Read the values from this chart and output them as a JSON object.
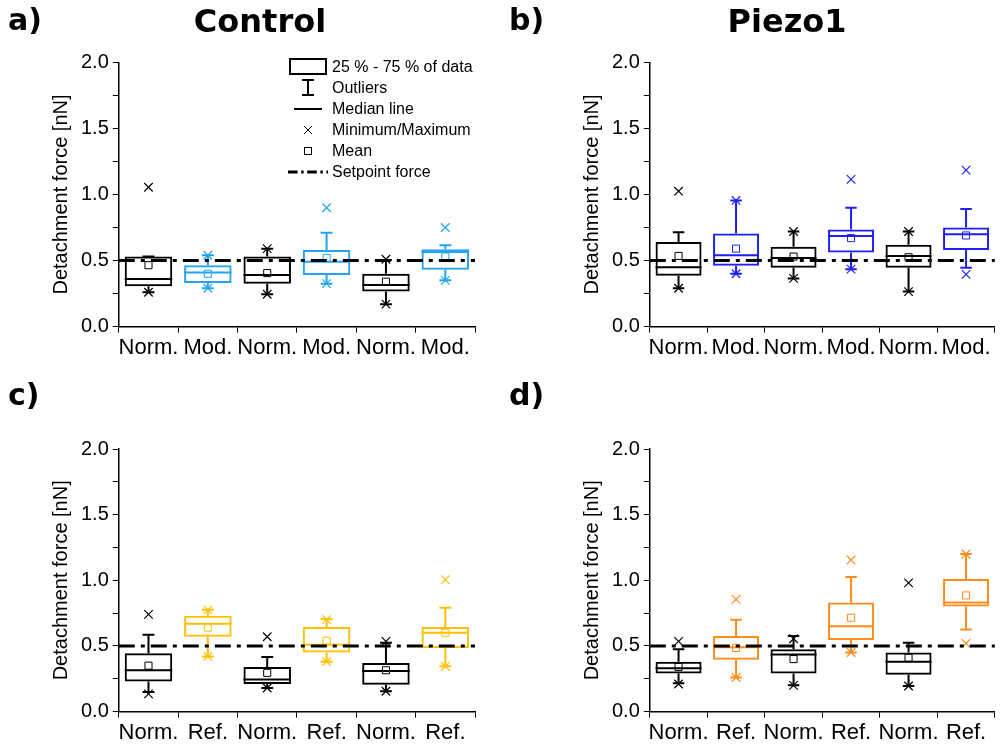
{
  "chart_data": [
    {
      "type": "box",
      "title": "Control",
      "ylabel": "Detachment force [nN]",
      "categories": [
        "Norm.",
        "Mod.",
        "Norm.",
        "Mod.",
        "Norm.",
        "Mod."
      ],
      "colors": [
        "#000000",
        "#22a4f2",
        "#000000",
        "#22a4f2",
        "#000000",
        "#22a4f2"
      ],
      "boxes": [
        {
          "low": 0.26,
          "q1": 0.305,
          "median": 0.36,
          "q3": 0.53,
          "high": 0.53,
          "mean": 0.465,
          "outliers": [
            1.055,
            0.26
          ]
        },
        {
          "low": 0.29,
          "q1": 0.33,
          "median": 0.41,
          "q3": 0.465,
          "high": 0.54,
          "mean": 0.4,
          "outliers": [
            0.54,
            0.29
          ]
        },
        {
          "low": 0.245,
          "q1": 0.325,
          "median": 0.39,
          "q3": 0.53,
          "high": 0.59,
          "mean": 0.405,
          "outliers": [
            0.59,
            0.245
          ]
        },
        {
          "low": 0.325,
          "q1": 0.39,
          "median": 0.49,
          "q3": 0.58,
          "high": 0.71,
          "mean": 0.52,
          "outliers": [
            0.9,
            0.325
          ]
        },
        {
          "low": 0.17,
          "q1": 0.265,
          "median": 0.315,
          "q3": 0.4,
          "high": 0.505,
          "mean": 0.34,
          "outliers": [
            0.51,
            0.17
          ]
        },
        {
          "low": 0.35,
          "q1": 0.43,
          "median": 0.565,
          "q3": 0.585,
          "high": 0.615,
          "mean": 0.53,
          "outliers": [
            0.75,
            0.35
          ]
        }
      ],
      "ylim": [
        0,
        2.0
      ],
      "yticks": [
        {
          "value": 0,
          "label": "0.0"
        },
        {
          "value": 0.25,
          "label": null
        },
        {
          "value": 0.5,
          "label": "0.5"
        },
        {
          "value": 0.75,
          "label": null
        },
        {
          "value": 1.0,
          "label": "1.0"
        },
        {
          "value": 1.25,
          "label": null
        },
        {
          "value": 1.5,
          "label": "1.5"
        },
        {
          "value": 1.75,
          "label": null
        },
        {
          "value": 2.0,
          "label": "2.0"
        }
      ],
      "ref_lines": [
        {
          "axis": "y",
          "value": 0.5,
          "label": "Setpoint force",
          "color": "#000000",
          "line_style": "dashed"
        }
      ],
      "legend": "top right",
      "annotations": [
        "a)",
        "25 % - 75 % of data",
        "Outliers",
        "Median line",
        "Minimum/Maximum",
        "Mean"
      ]
    },
    {
      "type": "box",
      "title": "Piezo1",
      "ylabel": "Detachment force [nN]",
      "categories": [
        "Norm.",
        "Mod.",
        "Norm.",
        "Mod.",
        "Norm.",
        "Mod."
      ],
      "colors": [
        "#000000",
        "#1f1ff5",
        "#000000",
        "#1f1ff5",
        "#000000",
        "#1f1ff5"
      ],
      "boxes": [
        {
          "low": 0.29,
          "q1": 0.385,
          "median": 0.45,
          "q3": 0.64,
          "high": 0.715,
          "mean": 0.535,
          "outliers": [
            1.025,
            0.29
          ]
        },
        {
          "low": 0.4,
          "q1": 0.46,
          "median": 0.54,
          "q3": 0.705,
          "high": 0.955,
          "mean": 0.59,
          "outliers": [
            0.955,
            0.4
          ]
        },
        {
          "low": 0.365,
          "q1": 0.445,
          "median": 0.52,
          "q3": 0.605,
          "high": 0.72,
          "mean": 0.53,
          "outliers": [
            0.72,
            0.365
          ]
        },
        {
          "low": 0.435,
          "q1": 0.56,
          "median": 0.685,
          "q3": 0.735,
          "high": 0.9,
          "mean": 0.67,
          "outliers": [
            1.115,
            0.435
          ]
        },
        {
          "low": 0.265,
          "q1": 0.445,
          "median": 0.535,
          "q3": 0.62,
          "high": 0.72,
          "mean": 0.525,
          "outliers": [
            0.72,
            0.265
          ]
        },
        {
          "low": 0.445,
          "q1": 0.58,
          "median": 0.7,
          "q3": 0.75,
          "high": 0.89,
          "mean": 0.69,
          "outliers": [
            1.185,
            0.395
          ]
        }
      ],
      "ylim": [
        0,
        2.0
      ],
      "yticks": [
        {
          "value": 0,
          "label": "0.0"
        },
        {
          "value": 0.25,
          "label": null
        },
        {
          "value": 0.5,
          "label": "0.5"
        },
        {
          "value": 0.75,
          "label": null
        },
        {
          "value": 1.0,
          "label": "1.0"
        },
        {
          "value": 1.25,
          "label": null
        },
        {
          "value": 1.5,
          "label": "1.5"
        },
        {
          "value": 1.75,
          "label": null
        },
        {
          "value": 2.0,
          "label": "2.0"
        }
      ],
      "ref_lines": [
        {
          "axis": "y",
          "value": 0.5,
          "color": "#000000",
          "line_style": "dashed"
        }
      ],
      "annotations": [
        "b)"
      ]
    },
    {
      "type": "box",
      "ylabel": "Detachment force [nN]",
      "categories": [
        "Norm.",
        "Ref.",
        "Norm.",
        "Ref.",
        "Norm.",
        "Ref."
      ],
      "colors": [
        "#000000",
        "#ffc000",
        "#000000",
        "#ffc000",
        "#000000",
        "#ffc000"
      ],
      "boxes": [
        {
          "low": 0.15,
          "q1": 0.23,
          "median": 0.315,
          "q3": 0.445,
          "high": 0.585,
          "mean": 0.35,
          "outliers": [
            0.74,
            0.135
          ]
        },
        {
          "low": 0.42,
          "q1": 0.57,
          "median": 0.67,
          "q3": 0.73,
          "high": 0.775,
          "mean": 0.64,
          "outliers": [
            0.775,
            0.42
          ]
        },
        {
          "low": 0.18,
          "q1": 0.21,
          "median": 0.245,
          "q3": 0.34,
          "high": 0.415,
          "mean": 0.295,
          "outliers": [
            0.57,
            0.18
          ]
        },
        {
          "low": 0.38,
          "q1": 0.45,
          "median": 0.51,
          "q3": 0.645,
          "high": 0.705,
          "mean": 0.54,
          "outliers": [
            0.7,
            0.38
          ]
        },
        {
          "low": 0.155,
          "q1": 0.205,
          "median": 0.31,
          "q3": 0.37,
          "high": 0.525,
          "mean": 0.315,
          "outliers": [
            0.535,
            0.155
          ]
        },
        {
          "low": 0.345,
          "q1": 0.485,
          "median": 0.6,
          "q3": 0.645,
          "high": 0.79,
          "mean": 0.6,
          "outliers": [
            1.005,
            0.345
          ]
        }
      ],
      "ylim": [
        0,
        2.0
      ],
      "yticks": [
        {
          "value": 0,
          "label": "0.0"
        },
        {
          "value": 0.25,
          "label": null
        },
        {
          "value": 0.5,
          "label": "0.5"
        },
        {
          "value": 0.75,
          "label": null
        },
        {
          "value": 1.0,
          "label": "1.0"
        },
        {
          "value": 1.25,
          "label": null
        },
        {
          "value": 1.5,
          "label": "1.5"
        },
        {
          "value": 1.75,
          "label": null
        },
        {
          "value": 2.0,
          "label": "2.0"
        }
      ],
      "ref_lines": [
        {
          "axis": "y",
          "value": 0.5,
          "color": "#000000",
          "line_style": "dashed"
        }
      ],
      "annotations": [
        "c)"
      ]
    },
    {
      "type": "box",
      "ylabel": "Detachment force [nN]",
      "categories": [
        "Norm.",
        "Ref.",
        "Norm.",
        "Ref.",
        "Norm.",
        "Ref."
      ],
      "colors": [
        "#000000",
        "#ff8c1a",
        "#000000",
        "#ff8c1a",
        "#000000",
        "#ff8c1a"
      ],
      "boxes": [
        {
          "low": 0.215,
          "q1": 0.29,
          "median": 0.33,
          "q3": 0.38,
          "high": 0.475,
          "mean": 0.34,
          "outliers": [
            0.535,
            0.21
          ]
        },
        {
          "low": 0.26,
          "q1": 0.395,
          "median": 0.49,
          "q3": 0.575,
          "high": 0.7,
          "mean": 0.485,
          "outliers": [
            0.855,
            0.26
          ]
        },
        {
          "low": 0.2,
          "q1": 0.29,
          "median": 0.435,
          "q3": 0.475,
          "high": 0.575,
          "mean": 0.4,
          "outliers": [
            0.555,
            0.2
          ]
        },
        {
          "low": 0.45,
          "q1": 0.545,
          "median": 0.65,
          "q3": 0.83,
          "high": 1.025,
          "mean": 0.715,
          "outliers": [
            1.155,
            0.45
          ]
        },
        {
          "low": 0.195,
          "q1": 0.28,
          "median": 0.38,
          "q3": 0.45,
          "high": 0.525,
          "mean": 0.41,
          "outliers": [
            0.98,
            0.195
          ]
        },
        {
          "low": 0.625,
          "q1": 0.8,
          "median": 0.83,
          "q3": 1.01,
          "high": 1.2,
          "mean": 0.885,
          "outliers": [
            1.2,
            0.52
          ]
        }
      ],
      "ylim": [
        0,
        2.0
      ],
      "yticks": [
        {
          "value": 0,
          "label": "0.0"
        },
        {
          "value": 0.25,
          "label": null
        },
        {
          "value": 0.5,
          "label": "0.5"
        },
        {
          "value": 0.75,
          "label": null
        },
        {
          "value": 1.0,
          "label": "1.0"
        },
        {
          "value": 1.25,
          "label": null
        },
        {
          "value": 1.5,
          "label": "1.5"
        },
        {
          "value": 1.75,
          "label": null
        },
        {
          "value": 2.0,
          "label": "2.0"
        }
      ],
      "ref_lines": [
        {
          "axis": "y",
          "value": 0.5,
          "color": "#000000",
          "line_style": "dashed"
        }
      ],
      "annotations": [
        "d)"
      ]
    }
  ]
}
